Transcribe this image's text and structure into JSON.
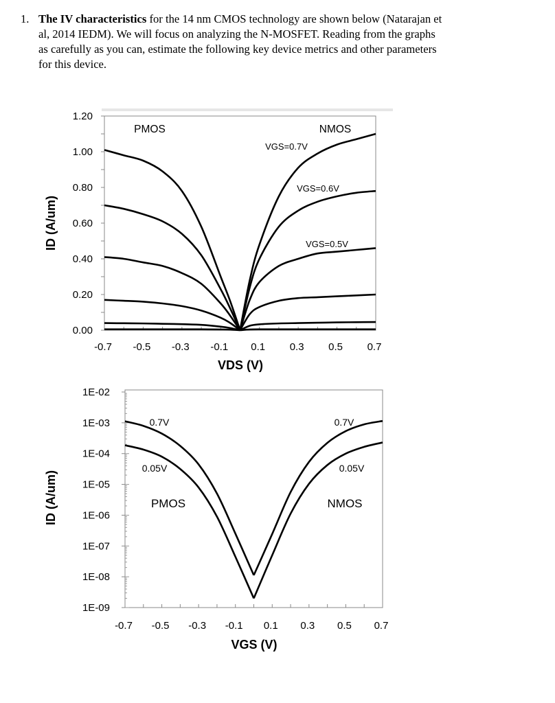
{
  "question": {
    "number": "1.",
    "bold_lead": "The IV characteristics",
    "lines": [
      " for the 14 nm CMOS technology are shown below (Natarajan et",
      "al, 2014 IEDM). We will focus on analyzing the N-MOSFET. Reading from the graphs",
      "as carefully as you can, estimate the following key device metrics and other parameters",
      "for this device."
    ]
  },
  "chart_data": [
    {
      "type": "line",
      "title": "",
      "xlabel": "VDS (V)",
      "ylabel": "ID (A/um)",
      "xlim": [
        -0.7,
        0.7
      ],
      "ylim": [
        0,
        1.2
      ],
      "xticks": [
        "-0.7",
        "-0.5",
        "-0.3",
        "-0.1",
        "0.1",
        "0.3",
        "0.5",
        "0.7"
      ],
      "xtick_values": [
        -0.7,
        -0.5,
        -0.3,
        -0.1,
        0.1,
        0.3,
        0.5,
        0.7
      ],
      "yticks": [
        "1.20",
        "1.00",
        "0.80",
        "0.60",
        "0.40",
        "0.20",
        "0.00"
      ],
      "ytick_values": [
        1.2,
        1.0,
        0.8,
        0.6,
        0.4,
        0.2,
        0.0
      ],
      "annotations": [
        "PMOS",
        "NMOS",
        "VGS=0.7V",
        "VGS=0.6V",
        "VGS=0.5V"
      ],
      "x": [
        0,
        0.05,
        0.1,
        0.2,
        0.3,
        0.4,
        0.5,
        0.6,
        0.7
      ],
      "series": [
        {
          "device": "NMOS",
          "vgs": 0.7,
          "values": [
            0,
            0.28,
            0.48,
            0.75,
            0.91,
            0.99,
            1.04,
            1.07,
            1.1
          ]
        },
        {
          "device": "NMOS",
          "vgs": 0.6,
          "values": [
            0,
            0.24,
            0.4,
            0.58,
            0.67,
            0.72,
            0.75,
            0.77,
            0.78
          ]
        },
        {
          "device": "NMOS",
          "vgs": 0.5,
          "values": [
            0,
            0.17,
            0.27,
            0.36,
            0.4,
            0.43,
            0.44,
            0.45,
            0.46
          ]
        },
        {
          "device": "NMOS",
          "vgs": 0.4,
          "values": [
            0,
            0.09,
            0.13,
            0.165,
            0.18,
            0.185,
            0.19,
            0.195,
            0.2
          ]
        },
        {
          "device": "NMOS",
          "vgs": 0.3,
          "values": [
            0,
            0.025,
            0.033,
            0.038,
            0.04,
            0.042,
            0.044,
            0.045,
            0.046
          ]
        },
        {
          "device": "NMOS",
          "vgs": 0.2,
          "values": [
            0,
            0.004,
            0.005,
            0.005,
            0.005,
            0.005,
            0.005,
            0.005,
            0.005
          ]
        },
        {
          "device": "PMOS",
          "vgs": -0.7,
          "values": [
            0,
            0.16,
            0.3,
            0.58,
            0.78,
            0.89,
            0.95,
            0.98,
            1.01
          ]
        },
        {
          "device": "PMOS",
          "vgs": -0.6,
          "values": [
            0,
            0.12,
            0.23,
            0.42,
            0.54,
            0.61,
            0.65,
            0.68,
            0.7
          ]
        },
        {
          "device": "PMOS",
          "vgs": -0.5,
          "values": [
            0,
            0.08,
            0.15,
            0.26,
            0.32,
            0.36,
            0.38,
            0.4,
            0.41
          ]
        },
        {
          "device": "PMOS",
          "vgs": -0.4,
          "values": [
            0,
            0.04,
            0.07,
            0.11,
            0.135,
            0.15,
            0.16,
            0.165,
            0.17
          ]
        },
        {
          "device": "PMOS",
          "vgs": -0.3,
          "values": [
            0,
            0.012,
            0.02,
            0.03,
            0.034,
            0.036,
            0.038,
            0.039,
            0.04
          ]
        },
        {
          "device": "PMOS",
          "vgs": -0.2,
          "values": [
            0,
            0.003,
            0.004,
            0.005,
            0.005,
            0.005,
            0.005,
            0.005,
            0.005
          ]
        }
      ],
      "pmos_x_sign": -1,
      "grid": false
    },
    {
      "type": "line",
      "title": "",
      "xlabel": "VGS (V)",
      "ylabel": "ID (A/um)",
      "yscale": "log",
      "xlim": [
        -0.7,
        0.7
      ],
      "ylim_log10": [
        -9,
        -2
      ],
      "xticks": [
        "-0.7",
        "-0.5",
        "-0.3",
        "-0.1",
        "0.1",
        "0.3",
        "0.5",
        "0.7"
      ],
      "xtick_values": [
        -0.7,
        -0.5,
        -0.3,
        -0.1,
        0.1,
        0.3,
        0.5,
        0.7
      ],
      "yticks": [
        "1E-02",
        "1E-03",
        "1E-04",
        "1E-05",
        "1E-06",
        "1E-07",
        "1E-08",
        "1E-09"
      ],
      "ytick_values_log10": [
        -2,
        -3,
        -4,
        -5,
        -6,
        -7,
        -8,
        -9
      ],
      "annotations": [
        "0.7V",
        "0.05V",
        "PMOS",
        "0.7V",
        "0.05V",
        "NMOS"
      ],
      "x": [
        -0.7,
        -0.6,
        -0.5,
        -0.4,
        -0.3,
        -0.2,
        -0.1,
        0
      ],
      "x_nmos": [
        0,
        0.1,
        0.2,
        0.3,
        0.4,
        0.5,
        0.6,
        0.7
      ],
      "series": [
        {
          "device": "PMOS",
          "vds": 0.7,
          "log10_values": [
            -2.95,
            -3.1,
            -3.35,
            -3.75,
            -4.35,
            -5.3,
            -6.6,
            -7.95
          ]
        },
        {
          "device": "PMOS",
          "vds": 0.05,
          "log10_values": [
            -3.73,
            -3.87,
            -4.1,
            -4.5,
            -5.1,
            -6.05,
            -7.35,
            -8.7
          ]
        },
        {
          "device": "NMOS",
          "vds": 0.7,
          "log10_values": [
            -7.95,
            -6.61,
            -5.25,
            -4.27,
            -3.65,
            -3.27,
            -3.05,
            -2.94
          ]
        },
        {
          "device": "NMOS",
          "vds": 0.05,
          "log10_values": [
            -8.7,
            -7.3,
            -5.95,
            -4.98,
            -4.37,
            -4.0,
            -3.78,
            -3.64
          ]
        }
      ],
      "grid": false
    }
  ]
}
